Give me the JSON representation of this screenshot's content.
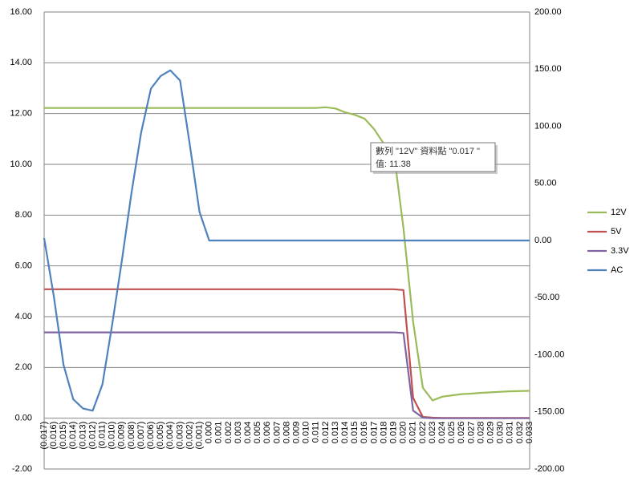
{
  "chart_data": {
    "type": "line",
    "categories": [
      "(0.017)",
      "(0.016)",
      "(0.015)",
      "(0.014)",
      "(0.013)",
      "(0.012)",
      "(0.011)",
      "(0.010)",
      "(0.009)",
      "(0.008)",
      "(0.007)",
      "(0.006)",
      "(0.005)",
      "(0.004)",
      "(0.003)",
      "(0.002)",
      "(0.001)",
      "0.000",
      "0.001",
      "0.002",
      "0.003",
      "0.004",
      "0.005",
      "0.006",
      "0.007",
      "0.008",
      "0.009",
      "0.010",
      "0.011",
      "0.012",
      "0.013",
      "0.014",
      "0.015",
      "0.016",
      "0.017",
      "0.018",
      "0.019",
      "0.020",
      "0.021",
      "0.022",
      "0.023",
      "0.024",
      "0.025",
      "0.026",
      "0.027",
      "0.028",
      "0.029",
      "0.030",
      "0.031",
      "0.032",
      "0.033"
    ],
    "series": [
      {
        "name": "12V",
        "color": "#9bbb59",
        "values": [
          12.22,
          12.22,
          12.22,
          12.22,
          12.22,
          12.22,
          12.22,
          12.22,
          12.22,
          12.22,
          12.22,
          12.22,
          12.22,
          12.22,
          12.22,
          12.22,
          12.22,
          12.22,
          12.22,
          12.22,
          12.22,
          12.22,
          12.22,
          12.22,
          12.22,
          12.22,
          12.22,
          12.22,
          12.22,
          12.25,
          12.2,
          12.05,
          11.95,
          11.8,
          11.38,
          10.8,
          10.5,
          7.5,
          3.8,
          1.2,
          0.7,
          0.85,
          0.9,
          0.95,
          0.97,
          1.0,
          1.02,
          1.04,
          1.06,
          1.07,
          1.08
        ]
      },
      {
        "name": "5V",
        "color": "#c0504d",
        "values": [
          5.08,
          5.08,
          5.08,
          5.08,
          5.08,
          5.08,
          5.08,
          5.08,
          5.08,
          5.08,
          5.08,
          5.08,
          5.08,
          5.08,
          5.08,
          5.08,
          5.08,
          5.08,
          5.08,
          5.08,
          5.08,
          5.08,
          5.08,
          5.08,
          5.08,
          5.08,
          5.08,
          5.08,
          5.08,
          5.08,
          5.08,
          5.08,
          5.08,
          5.08,
          5.08,
          5.08,
          5.08,
          5.05,
          0.8,
          0.05,
          0.02,
          0.01,
          0.01,
          0.01,
          0.01,
          0.01,
          0.01,
          0.01,
          0.01,
          0.01,
          0.01
        ]
      },
      {
        "name": "3.3V",
        "color": "#8064a2",
        "values": [
          3.38,
          3.38,
          3.38,
          3.38,
          3.38,
          3.38,
          3.38,
          3.38,
          3.38,
          3.38,
          3.38,
          3.38,
          3.38,
          3.38,
          3.38,
          3.38,
          3.38,
          3.38,
          3.38,
          3.38,
          3.38,
          3.38,
          3.38,
          3.38,
          3.38,
          3.38,
          3.38,
          3.38,
          3.38,
          3.38,
          3.38,
          3.38,
          3.38,
          3.38,
          3.38,
          3.38,
          3.38,
          3.36,
          0.3,
          0.02,
          0.0,
          0.0,
          0.0,
          0.0,
          0.0,
          0.0,
          0.0,
          0.0,
          0.0,
          0.0,
          0.0
        ]
      },
      {
        "name": "AC",
        "color": "#4f81bd",
        "axis": "y2",
        "values": [
          2,
          -49,
          -109,
          -139,
          -147,
          -149,
          -126,
          -74,
          -18,
          42,
          95,
          133,
          144,
          149,
          140,
          84,
          25,
          0,
          0,
          0,
          0,
          0,
          0,
          0,
          0,
          0,
          0,
          0,
          0,
          0,
          0,
          0,
          0,
          0,
          0,
          0,
          0,
          0,
          0,
          0,
          0,
          0,
          0,
          0,
          0,
          0,
          0,
          0,
          0,
          0,
          0
        ]
      }
    ],
    "ylim": [
      -2,
      16
    ],
    "yticks": [
      {
        "value": -2,
        "label": "-2.00"
      },
      {
        "value": 0,
        "label": "0.00"
      },
      {
        "value": 2,
        "label": "2.00"
      },
      {
        "value": 4,
        "label": "4.00"
      },
      {
        "value": 6,
        "label": "6.00"
      },
      {
        "value": 8,
        "label": "8.00"
      },
      {
        "value": 10,
        "label": "10.00"
      },
      {
        "value": 12,
        "label": "12.00"
      },
      {
        "value": 14,
        "label": "14.00"
      },
      {
        "value": 16,
        "label": "16.00"
      }
    ],
    "y2lim": [
      -200,
      200
    ],
    "y2ticks": [
      {
        "value": -200,
        "label": "-200.00"
      },
      {
        "value": -150,
        "label": "-150.00"
      },
      {
        "value": -100,
        "label": "-100.00"
      },
      {
        "value": -50,
        "label": "-50.00"
      },
      {
        "value": 0,
        "label": "0.00"
      },
      {
        "value": 50,
        "label": "50.00"
      },
      {
        "value": 100,
        "label": "100.00"
      },
      {
        "value": 150,
        "label": "150.00"
      },
      {
        "value": 200,
        "label": "200.00"
      }
    ],
    "grid": true,
    "legend": "right",
    "tooltip": [
      "數列 \"12V\" 資料點 \"0.017 \"",
      "值: 11.38"
    ]
  }
}
